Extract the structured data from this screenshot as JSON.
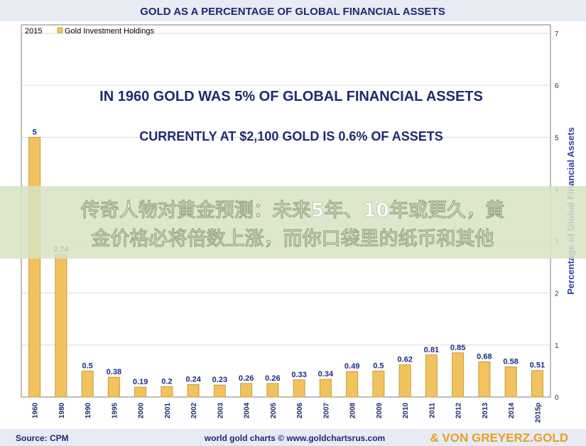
{
  "header": {
    "title": "GOLD AS A PERCENTAGE OF GLOBAL FINANCIAL ASSETS"
  },
  "legend": {
    "year": "2015",
    "label": "Gold Investment Holdings"
  },
  "annotations": {
    "line1": "IN 1960 GOLD WAS 5% OF GLOBAL FINANCIAL ASSETS",
    "line2": "CURRENTLY AT $2,100 GOLD IS 0.6% OF ASSETS"
  },
  "banner": {
    "line1": "传奇人物对黄金预测：未来5年、10年或更久，黄",
    "line2": "金价格必将倍数上涨，而你口袋里的纸币和其他"
  },
  "footer": {
    "source": "Source: CPM",
    "credit": "world gold charts © www.goldchartsrus.com",
    "brand": "& VON GREYERZ.GOLD"
  },
  "colors": {
    "bar": "#f2c25e",
    "bar_edge": "#c89a3a",
    "axis_title": "#2b3fa8",
    "value_label": "#1b2a8a",
    "title": "#1f2a6e",
    "banner_bg": "#dfe8cf",
    "banner_text": "#ffffff",
    "brand": "#e8a020"
  },
  "chart_data": {
    "type": "bar",
    "categories": [
      "1960",
      "1980",
      "1990",
      "1995",
      "2000",
      "2001",
      "2002",
      "2003",
      "2004",
      "2005",
      "2006",
      "2007",
      "2008",
      "2009",
      "2010",
      "2011",
      "2012",
      "2013",
      "2014",
      "2015p"
    ],
    "values": [
      5,
      2.74,
      0.5,
      0.38,
      0.19,
      0.2,
      0.24,
      0.23,
      0.26,
      0.26,
      0.33,
      0.34,
      0.49,
      0.5,
      0.62,
      0.81,
      0.85,
      0.68,
      0.58,
      0.51
    ],
    "value_labels": [
      "5",
      "2.74",
      "0.5",
      "0.38",
      "0.19",
      "0.2",
      "0.24",
      "0.23",
      "0.26",
      "0.26",
      "0.33",
      "0.34",
      "0.49",
      "0.5",
      "0.62",
      "0.81",
      "0.85",
      "0.68",
      "0.58",
      "0.51"
    ],
    "ylabel": "Percentage of Global Financial Assets",
    "ylim": [
      0,
      7
    ],
    "yticks": [
      0,
      1,
      2,
      3,
      4,
      5,
      6,
      7
    ],
    "series": [
      {
        "name": "Gold Investment Holdings",
        "values": [
          5,
          2.74,
          0.5,
          0.38,
          0.19,
          0.2,
          0.24,
          0.23,
          0.26,
          0.26,
          0.33,
          0.34,
          0.49,
          0.5,
          0.62,
          0.81,
          0.85,
          0.68,
          0.58,
          0.51
        ]
      }
    ],
    "legend_position": "top-left",
    "grid": true
  }
}
